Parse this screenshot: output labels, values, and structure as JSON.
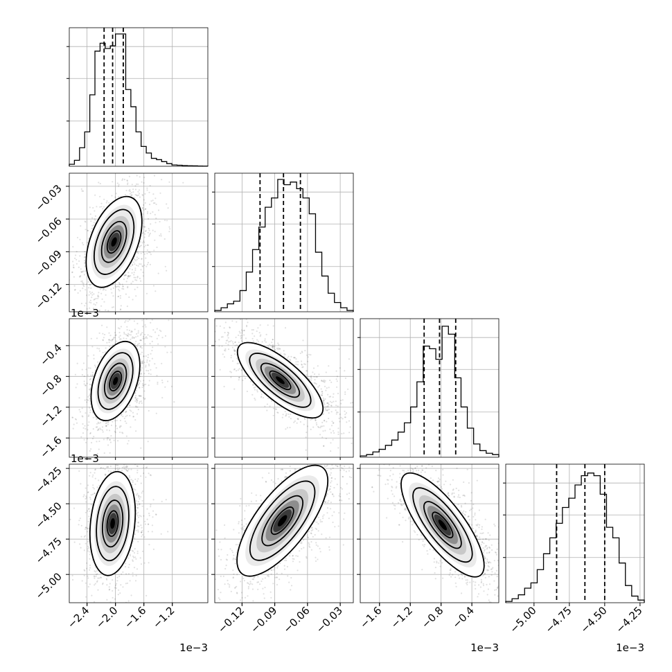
{
  "chart_data": {
    "type": "corner",
    "parameters": 4,
    "grid": true,
    "quantile_lines": "dashed",
    "parameter_ranges": [
      [
        -2.65,
        -0.7
      ],
      [
        -0.145,
        -0.018
      ],
      [
        -1.85,
        -0.05
      ],
      [
        -5.2,
        -4.22
      ]
    ],
    "ticks": [
      [
        -2.4,
        -2.0,
        -1.6,
        -1.2
      ],
      [
        -0.12,
        -0.09,
        -0.06,
        -0.03
      ],
      [
        -1.6,
        -1.2,
        -0.8,
        -0.4
      ],
      [
        -5.0,
        -4.75,
        -4.5,
        -4.25
      ]
    ],
    "tick_labels": [
      [
        "−2.4",
        "−2.0",
        "−1.6",
        "−1.2"
      ],
      [
        "−0.12",
        "−0.09",
        "−0.06",
        "−0.03"
      ],
      [
        "−1.6",
        "−1.2",
        "−0.8",
        "−0.4"
      ],
      [
        "−5.00",
        "−4.75",
        "−4.50",
        "−4.25"
      ]
    ],
    "offset_texts": [
      "1e−3",
      "",
      "1e−3",
      "1e−3"
    ],
    "quantiles": [
      [
        -2.16,
        -2.04,
        -1.89
      ],
      [
        -0.1035,
        -0.082,
        -0.0665
      ],
      [
        -1.02,
        -0.82,
        -0.61
      ],
      [
        -4.84,
        -4.64,
        -4.5
      ]
    ],
    "histograms": [
      [
        0.015,
        0.045,
        0.14,
        0.26,
        0.54,
        0.87,
        0.93,
        0.89,
        0.91,
        1.0,
        1.0,
        0.58,
        0.45,
        0.26,
        0.15,
        0.1,
        0.06,
        0.05,
        0.035,
        0.02,
        0.01,
        0.008,
        0.005,
        0.004,
        0.003,
        0.002,
        0.001
      ],
      [
        0.01,
        0.03,
        0.06,
        0.08,
        0.16,
        0.3,
        0.47,
        0.64,
        0.79,
        0.86,
        1.0,
        0.96,
        0.98,
        0.93,
        0.86,
        0.74,
        0.45,
        0.27,
        0.14,
        0.07,
        0.03,
        0.01
      ],
      [
        0.01,
        0.02,
        0.04,
        0.06,
        0.09,
        0.13,
        0.19,
        0.26,
        0.38,
        0.57,
        0.84,
        0.82,
        0.74,
        0.99,
        0.93,
        0.6,
        0.38,
        0.22,
        0.1,
        0.05,
        0.03,
        0.02
      ],
      [
        0.01,
        0.03,
        0.06,
        0.11,
        0.15,
        0.25,
        0.37,
        0.49,
        0.6,
        0.72,
        0.79,
        0.89,
        0.96,
        0.98,
        0.96,
        0.82,
        0.57,
        0.49,
        0.3,
        0.13,
        0.05,
        0.02
      ]
    ],
    "panels_2d": [
      {
        "x_param": 0,
        "y_param": 1,
        "center": [
          -2.02,
          -0.081
        ],
        "sigma": [
          0.16,
          0.017
        ],
        "correlation": 0.45
      },
      {
        "x_param": 0,
        "y_param": 2,
        "center": [
          -2.0,
          -0.86
        ],
        "sigma": [
          0.14,
          0.21
        ],
        "correlation": 0.4
      },
      {
        "x_param": 1,
        "y_param": 2,
        "center": [
          -0.085,
          -0.85
        ],
        "sigma": [
          0.016,
          0.2
        ],
        "correlation": -0.75
      },
      {
        "x_param": 0,
        "y_param": 3,
        "center": [
          -2.04,
          -4.64
        ],
        "sigma": [
          0.13,
          0.15
        ],
        "correlation": 0.2
      },
      {
        "x_param": 1,
        "y_param": 3,
        "center": [
          -0.083,
          -4.62
        ],
        "sigma": [
          0.017,
          0.16
        ],
        "correlation": 0.72
      },
      {
        "x_param": 2,
        "y_param": 3,
        "center": [
          -0.78,
          -4.65
        ],
        "sigma": [
          0.22,
          0.15
        ],
        "correlation": -0.78
      }
    ]
  }
}
